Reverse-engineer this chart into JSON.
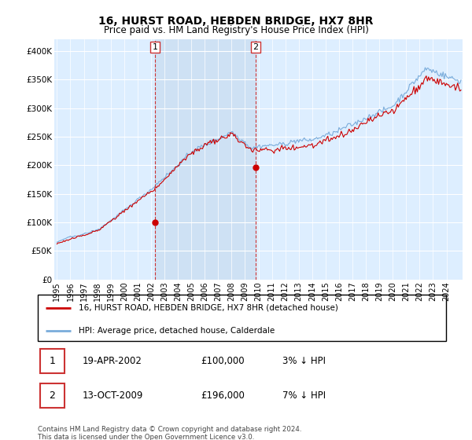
{
  "title": "16, HURST ROAD, HEBDEN BRIDGE, HX7 8HR",
  "subtitle": "Price paid vs. HM Land Registry's House Price Index (HPI)",
  "legend_label_red": "16, HURST ROAD, HEBDEN BRIDGE, HX7 8HR (detached house)",
  "legend_label_blue": "HPI: Average price, detached house, Calderdale",
  "footer": "Contains HM Land Registry data © Crown copyright and database right 2024.\nThis data is licensed under the Open Government Licence v3.0.",
  "sale1_label": "1",
  "sale1_date": "19-APR-2002",
  "sale1_price": "£100,000",
  "sale1_hpi": "3% ↓ HPI",
  "sale2_label": "2",
  "sale2_date": "13-OCT-2009",
  "sale2_price": "£196,000",
  "sale2_hpi": "7% ↓ HPI",
  "sale1_x": 2002.29,
  "sale1_y": 100000,
  "sale2_x": 2009.79,
  "sale2_y": 196000,
  "vline1_x": 2002.29,
  "vline2_x": 2009.79,
  "color_red": "#cc0000",
  "color_blue": "#7aacdb",
  "color_vline": "#cc3333",
  "background_chart": "#ddeeff",
  "shade_color": "#ddeeff",
  "ylim": [
    0,
    420000
  ],
  "yticks": [
    0,
    50000,
    100000,
    150000,
    200000,
    250000,
    300000,
    350000,
    400000
  ],
  "xlim_start": 1994.8,
  "xlim_end": 2025.2,
  "noise_seed_blue": 42,
  "noise_seed_red": 99
}
